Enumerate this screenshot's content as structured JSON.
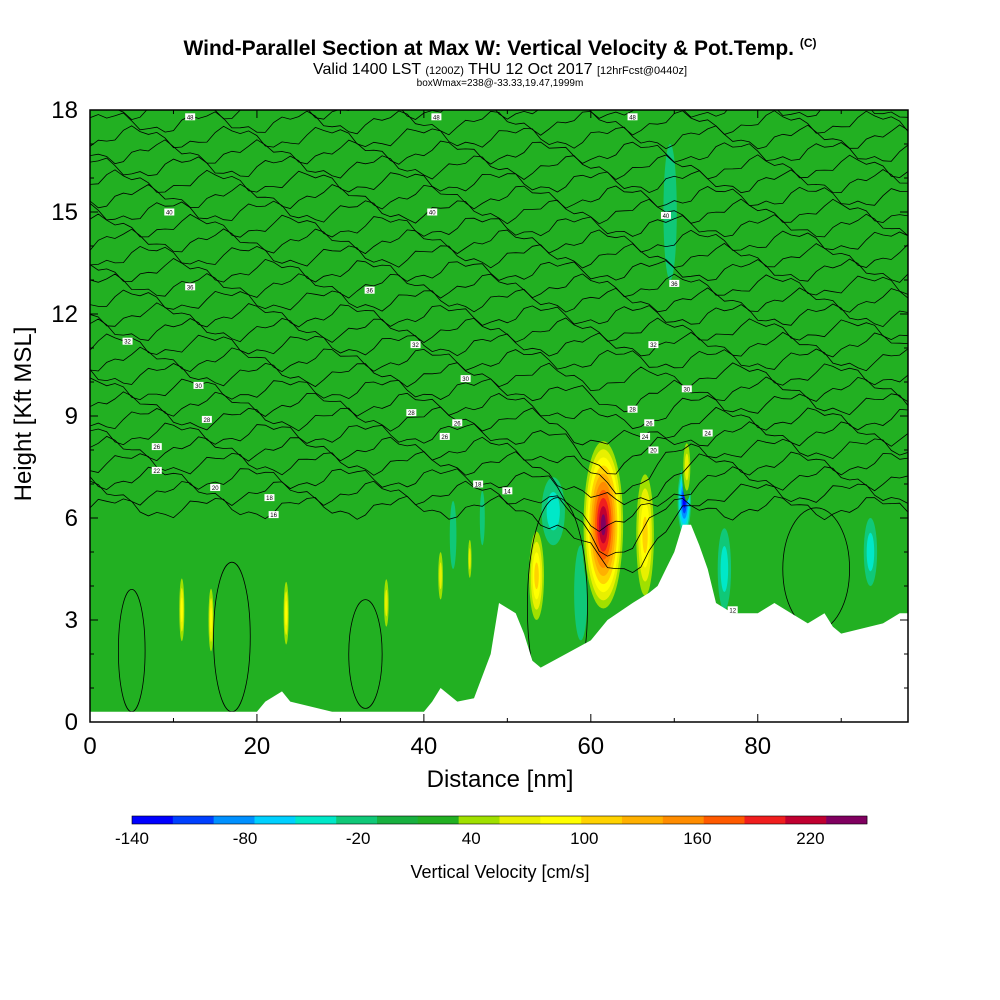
{
  "header": {
    "title": "Wind-Parallel Section at Max W: Vertical Velocity & Pot.Temp.",
    "title_mark": "(C)",
    "valid_prefix": "Valid 1400 LST",
    "valid_utc": "(1200Z)",
    "valid_date": "THU 12 Oct 2017",
    "forecast": "[12hrFcst@0440z]",
    "boxinfo": "boxWmax=238@-33.33,19.47,1999m"
  },
  "colors": {
    "background_field": "#22b022",
    "terrain": "#ffffff",
    "contour": "#000000",
    "scale": [
      "#0000ff",
      "#0040ff",
      "#0090ff",
      "#00d0ff",
      "#00e8c8",
      "#10c878",
      "#18b040",
      "#22b022",
      "#a0e000",
      "#e8f000",
      "#ffff00",
      "#ffd200",
      "#ffb000",
      "#ff8c00",
      "#ff5a00",
      "#f01e1e",
      "#c00030",
      "#800060"
    ]
  },
  "chart_data": {
    "type": "heatmap",
    "xlabel": "Distance [nm]",
    "ylabel": "Height [Kft MSL]",
    "xlim": [
      0,
      98
    ],
    "ylim": [
      0,
      18
    ],
    "x_ticks": [
      0,
      20,
      40,
      60,
      80
    ],
    "y_ticks": [
      0,
      3,
      6,
      9,
      12,
      15,
      18
    ],
    "colorbar": {
      "label": "Vertical Velocity [cm/s]",
      "tick_labels": [
        "-140",
        "-80",
        "-20",
        "40",
        "100",
        "160",
        "220"
      ],
      "tick_values": [
        -140,
        -80,
        -20,
        40,
        100,
        160,
        220
      ],
      "range": [
        -140,
        250
      ],
      "bins": 18
    },
    "terrain": [
      {
        "x": 0,
        "h": 0.3
      },
      {
        "x": 20,
        "h": 0.3
      },
      {
        "x": 21,
        "h": 0.6
      },
      {
        "x": 23,
        "h": 0.9
      },
      {
        "x": 24,
        "h": 0.6
      },
      {
        "x": 29,
        "h": 0.3
      },
      {
        "x": 40,
        "h": 0.3
      },
      {
        "x": 41,
        "h": 0.6
      },
      {
        "x": 42,
        "h": 1.0
      },
      {
        "x": 44,
        "h": 0.6
      },
      {
        "x": 46,
        "h": 0.7
      },
      {
        "x": 48,
        "h": 2.0
      },
      {
        "x": 49,
        "h": 3.5
      },
      {
        "x": 51,
        "h": 3.2
      },
      {
        "x": 52,
        "h": 2.6
      },
      {
        "x": 53,
        "h": 1.8
      },
      {
        "x": 54,
        "h": 1.6
      },
      {
        "x": 57,
        "h": 2.0
      },
      {
        "x": 60,
        "h": 2.4
      },
      {
        "x": 62,
        "h": 3.0
      },
      {
        "x": 65,
        "h": 3.5
      },
      {
        "x": 67,
        "h": 3.8
      },
      {
        "x": 68,
        "h": 4.0
      },
      {
        "x": 69,
        "h": 4.5
      },
      {
        "x": 70,
        "h": 5.0
      },
      {
        "x": 71,
        "h": 5.8
      },
      {
        "x": 72,
        "h": 5.8
      },
      {
        "x": 73,
        "h": 5.2
      },
      {
        "x": 74,
        "h": 4.5
      },
      {
        "x": 75,
        "h": 3.5
      },
      {
        "x": 77,
        "h": 3.2
      },
      {
        "x": 80,
        "h": 3.2
      },
      {
        "x": 82,
        "h": 3.5
      },
      {
        "x": 84,
        "h": 3.2
      },
      {
        "x": 86,
        "h": 2.9
      },
      {
        "x": 88,
        "h": 3.2
      },
      {
        "x": 89,
        "h": 2.8
      },
      {
        "x": 90,
        "h": 2.6
      },
      {
        "x": 95,
        "h": 2.9
      },
      {
        "x": 97,
        "h": 3.2
      },
      {
        "x": 98,
        "h": 3.2
      }
    ],
    "updrafts": [
      {
        "x": 61.5,
        "y": 5.8,
        "rx": 2.6,
        "ry": 2.7,
        "w": 238
      },
      {
        "x": 66.5,
        "y": 5.5,
        "rx": 1.3,
        "ry": 2.2,
        "w": 110
      },
      {
        "x": 53.5,
        "y": 4.3,
        "rx": 1.1,
        "ry": 1.6,
        "w": 105
      },
      {
        "x": 11,
        "y": 3.3,
        "rx": 0.4,
        "ry": 1.2,
        "w": 85
      },
      {
        "x": 14.5,
        "y": 3.0,
        "rx": 0.4,
        "ry": 1.2,
        "w": 80
      },
      {
        "x": 23.5,
        "y": 3.2,
        "rx": 0.4,
        "ry": 1.2,
        "w": 85
      },
      {
        "x": 35.5,
        "y": 3.5,
        "rx": 0.4,
        "ry": 1.0,
        "w": 75
      },
      {
        "x": 42,
        "y": 4.3,
        "rx": 0.4,
        "ry": 1.0,
        "w": 70
      },
      {
        "x": 45.5,
        "y": 4.8,
        "rx": 0.3,
        "ry": 0.8,
        "w": 65
      },
      {
        "x": 71.5,
        "y": 7.5,
        "rx": 0.6,
        "ry": 1.0,
        "w": 70
      }
    ],
    "downdrafts": [
      {
        "x": 71.2,
        "y": 6.5,
        "rx": 0.8,
        "ry": 1.0,
        "w": -140
      },
      {
        "x": 55.5,
        "y": 6.2,
        "rx": 1.4,
        "ry": 1.0,
        "w": -40
      },
      {
        "x": 58.8,
        "y": 3.8,
        "rx": 0.8,
        "ry": 1.4,
        "w": -30
      },
      {
        "x": 76,
        "y": 4.5,
        "rx": 0.8,
        "ry": 1.2,
        "w": -35
      },
      {
        "x": 93.5,
        "y": 5.0,
        "rx": 0.8,
        "ry": 1.0,
        "w": -40
      },
      {
        "x": 69.5,
        "y": 15.0,
        "rx": 0.8,
        "ry": 2.0,
        "w": -30
      },
      {
        "x": 47,
        "y": 6.0,
        "rx": 0.3,
        "ry": 0.8,
        "w": -30
      },
      {
        "x": 43.5,
        "y": 5.5,
        "rx": 0.4,
        "ry": 1.0,
        "w": -25
      }
    ],
    "theta_contour_levels": [
      10,
      12,
      14,
      16,
      18,
      20,
      22,
      24,
      26,
      28,
      30,
      32,
      34,
      36,
      38,
      40,
      42,
      44,
      46,
      48,
      50,
      52,
      54,
      56,
      58,
      60,
      62,
      64,
      66
    ],
    "theta_contour_labels": [
      {
        "x": 12,
        "y": 17.8,
        "text": "48"
      },
      {
        "x": 41.5,
        "y": 17.8,
        "text": "48"
      },
      {
        "x": 65,
        "y": 17.8,
        "text": "48"
      },
      {
        "x": 9.5,
        "y": 15.0,
        "text": "40"
      },
      {
        "x": 41,
        "y": 15.0,
        "text": "40"
      },
      {
        "x": 69,
        "y": 14.9,
        "text": "40"
      },
      {
        "x": 12,
        "y": 12.8,
        "text": "36"
      },
      {
        "x": 33.5,
        "y": 12.7,
        "text": "36"
      },
      {
        "x": 70,
        "y": 12.9,
        "text": "36"
      },
      {
        "x": 4.5,
        "y": 11.2,
        "text": "32"
      },
      {
        "x": 39,
        "y": 11.1,
        "text": "32"
      },
      {
        "x": 67.5,
        "y": 11.1,
        "text": "32"
      },
      {
        "x": 13,
        "y": 9.9,
        "text": "30"
      },
      {
        "x": 45,
        "y": 10.1,
        "text": "30"
      },
      {
        "x": 71.5,
        "y": 9.8,
        "text": "30"
      },
      {
        "x": 14,
        "y": 8.9,
        "text": "28"
      },
      {
        "x": 38.5,
        "y": 9.1,
        "text": "28"
      },
      {
        "x": 65,
        "y": 9.2,
        "text": "28"
      },
      {
        "x": 8,
        "y": 8.1,
        "text": "26"
      },
      {
        "x": 42.5,
        "y": 8.4,
        "text": "26"
      },
      {
        "x": 44,
        "y": 8.8,
        "text": "26"
      },
      {
        "x": 67,
        "y": 8.8,
        "text": "26"
      },
      {
        "x": 66.5,
        "y": 8.4,
        "text": "24"
      },
      {
        "x": 74,
        "y": 8.5,
        "text": "24"
      },
      {
        "x": 8,
        "y": 7.4,
        "text": "22"
      },
      {
        "x": 15,
        "y": 6.9,
        "text": "20"
      },
      {
        "x": 67.5,
        "y": 8.0,
        "text": "20"
      },
      {
        "x": 21.5,
        "y": 6.6,
        "text": "18"
      },
      {
        "x": 46.5,
        "y": 7.0,
        "text": "18"
      },
      {
        "x": 22,
        "y": 6.1,
        "text": "16"
      },
      {
        "x": 50,
        "y": 6.8,
        "text": "14"
      },
      {
        "x": 77,
        "y": 3.3,
        "text": "12"
      }
    ]
  }
}
